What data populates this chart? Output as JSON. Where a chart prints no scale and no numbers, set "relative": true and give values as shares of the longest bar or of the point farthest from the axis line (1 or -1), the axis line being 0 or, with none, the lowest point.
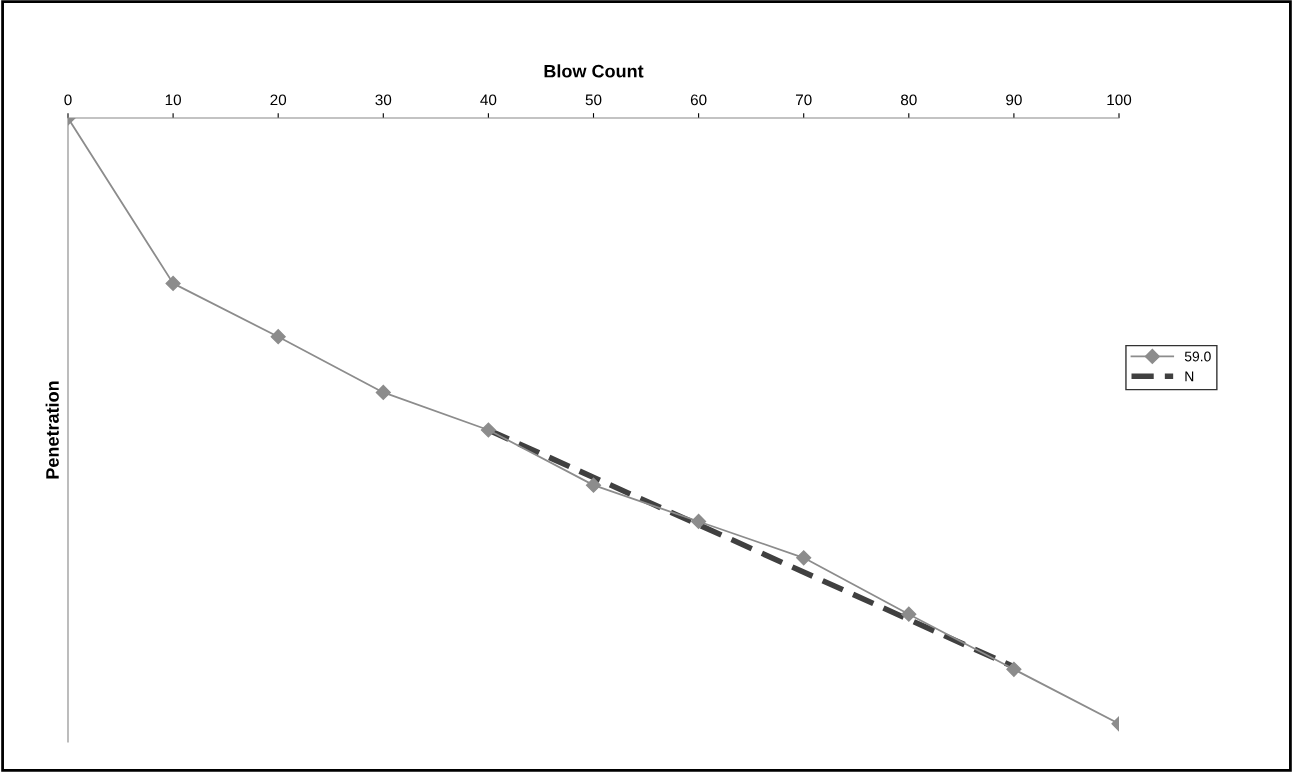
{
  "chart_data": {
    "type": "line",
    "xlabel": "Blow Count",
    "ylabel": "Penetration",
    "relative": true,
    "xlim": [
      0,
      100
    ],
    "xticks": [
      0,
      10,
      20,
      30,
      40,
      50,
      60,
      70,
      80,
      90,
      100
    ],
    "x": [
      0,
      10,
      20,
      30,
      40,
      50,
      60,
      70,
      80,
      90,
      100
    ],
    "series": [
      {
        "name": "59.0",
        "color": "#8c8c8c",
        "marker": "diamond",
        "line_style": "solid",
        "values": [
          0,
          -0.273,
          -0.361,
          -0.453,
          -0.515,
          -0.606,
          -0.666,
          -0.726,
          -0.819,
          -0.91,
          -1
        ]
      },
      {
        "name": "N",
        "color": "#404040",
        "marker": "none",
        "line_style": "dashed",
        "x": [
          40,
          90
        ],
        "values": [
          -0.515,
          -0.906
        ]
      }
    ],
    "legend": "right",
    "grid": false
  }
}
